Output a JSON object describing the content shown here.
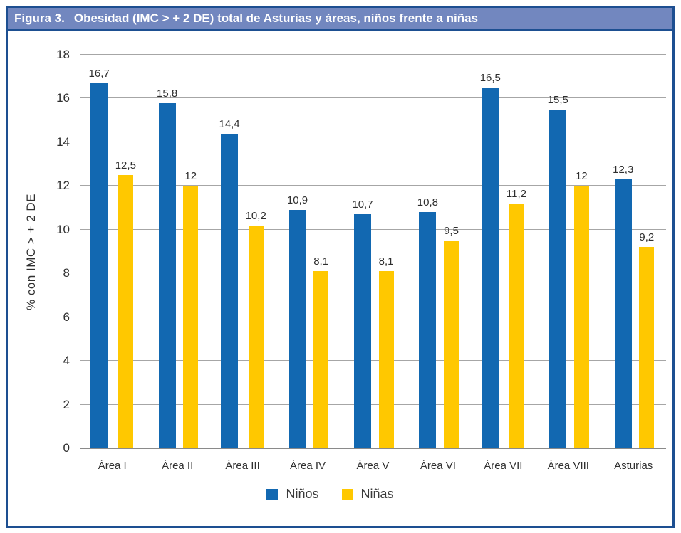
{
  "header": {
    "figure_label": "Figura 3.",
    "title": "Obesidad (IMC > + 2 DE) total de Asturias y áreas, niños frente a niñas"
  },
  "chart_data": {
    "type": "bar",
    "title": "Obesidad (IMC > + 2 DE) total de Asturias y áreas, niños frente a niñas",
    "categories": [
      "Área I",
      "Área II",
      "Área III",
      "Área IV",
      "Área V",
      "Área VI",
      "Área VII",
      "Área VIII",
      "Asturias"
    ],
    "series": [
      {
        "name": "Niños",
        "color": "#1268b1",
        "values": [
          16.7,
          15.8,
          14.4,
          10.9,
          10.7,
          10.8,
          16.5,
          15.5,
          12.3
        ],
        "labels": [
          "16,7",
          "15,8",
          "14,4",
          "10,9",
          "10,7",
          "10,8",
          "16,5",
          "15,5",
          "12,3"
        ]
      },
      {
        "name": "Niñas",
        "color": "#ffc800",
        "values": [
          12.5,
          12,
          10.2,
          8.1,
          8.1,
          9.5,
          11.2,
          12,
          9.2
        ],
        "labels": [
          "12,5",
          "12",
          "10,2",
          "8,1",
          "8,1",
          "9,5",
          "11,2",
          "12",
          "9,2"
        ]
      }
    ],
    "xlabel": "",
    "ylabel": "% con IMC > + 2 DE",
    "ylim": [
      0,
      18
    ],
    "ytick_step": 2,
    "yticks": [
      "0",
      "2",
      "4",
      "6",
      "8",
      "10",
      "12",
      "14",
      "16",
      "18"
    ],
    "grid": true,
    "legend_position": "bottom"
  },
  "colors": {
    "title_bar_bg": "#7287bf",
    "frame_border": "#1d4f91",
    "ninos_blue": "#1268b1",
    "ninas_yellow": "#ffc800",
    "gridline": "#a6a6a6",
    "axis_line": "#8a8a8a",
    "label_text": "#303030"
  }
}
